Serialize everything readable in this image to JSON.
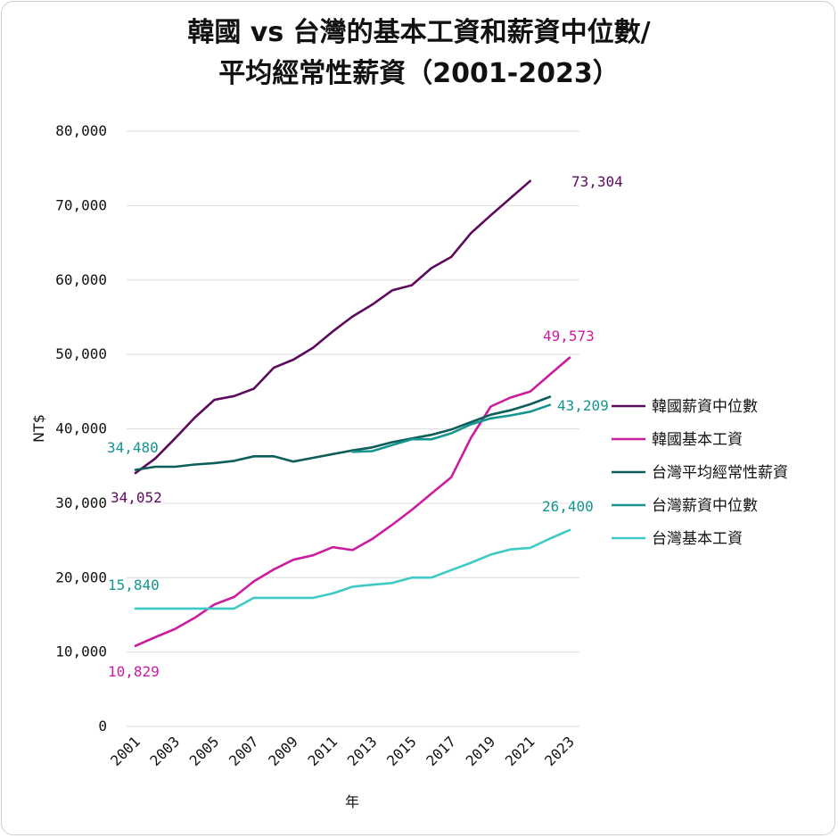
{
  "chart_data": {
    "type": "line",
    "title_lines": [
      "韓國 vs 台灣的基本工資和薪資中位數/",
      "平均經常性薪資（2001-2023）"
    ],
    "xlabel": "年",
    "ylabel": "NT$",
    "ylim": [
      0,
      80000
    ],
    "yticks": [
      0,
      10000,
      20000,
      30000,
      40000,
      50000,
      60000,
      70000,
      80000
    ],
    "ytick_labels": [
      "0",
      "10,000",
      "20,000",
      "30,000",
      "40,000",
      "50,000",
      "60,000",
      "70,000",
      "80,000"
    ],
    "x": [
      2001,
      2002,
      2003,
      2004,
      2005,
      2006,
      2007,
      2008,
      2009,
      2010,
      2011,
      2012,
      2013,
      2014,
      2015,
      2016,
      2017,
      2018,
      2019,
      2020,
      2021,
      2022,
      2023
    ],
    "xtick_labels": [
      "2001",
      "2003",
      "2005",
      "2007",
      "2009",
      "2011",
      "2013",
      "2015",
      "2017",
      "2019",
      "2021",
      "2023"
    ],
    "grid": "horizontal",
    "legend_position": "right",
    "series": [
      {
        "name": "韓國薪資中位數",
        "color": "#5c0a5e",
        "values": [
          34052,
          36000,
          38700,
          41500,
          43900,
          44400,
          45400,
          48200,
          49300,
          50900,
          53100,
          55100,
          56700,
          58600,
          59300,
          61600,
          63100,
          66300,
          68700,
          71000,
          73304,
          null,
          null
        ]
      },
      {
        "name": "韓國基本工資",
        "color": "#cc1c9e",
        "values": [
          10829,
          12000,
          13100,
          14600,
          16400,
          17400,
          19500,
          21100,
          22400,
          23000,
          24100,
          23700,
          25200,
          27100,
          29100,
          31300,
          33500,
          38800,
          43000,
          44200,
          45000,
          47300,
          49573
        ]
      },
      {
        "name": "台灣平均經常性薪資",
        "color": "#0d5e5a",
        "values": [
          34480,
          34900,
          34900,
          35200,
          35400,
          35700,
          36300,
          36300,
          35600,
          36100,
          36600,
          37100,
          37500,
          38200,
          38700,
          39200,
          39900,
          40900,
          41900,
          42500,
          43300,
          44300,
          null
        ]
      },
      {
        "name": "台灣薪資中位數",
        "color": "#14968f",
        "values": [
          null,
          null,
          null,
          null,
          null,
          null,
          null,
          null,
          null,
          null,
          null,
          36900,
          37000,
          37800,
          38600,
          38600,
          39400,
          40600,
          41400,
          41800,
          42300,
          43209,
          null
        ]
      },
      {
        "name": "台灣基本工資",
        "color": "#3ec9c6",
        "values": [
          15840,
          15840,
          15840,
          15840,
          15840,
          15840,
          17280,
          17280,
          17280,
          17280,
          17880,
          18780,
          19047,
          19273,
          20008,
          20008,
          21009,
          22000,
          23100,
          23800,
          24000,
          25250,
          26400
        ]
      }
    ],
    "data_labels": [
      {
        "text": "73,304",
        "series": "韓國薪資中位數",
        "color": "#5c0a5e"
      },
      {
        "text": "34,052",
        "series": "韓國薪資中位數",
        "color": "#5c0a5e"
      },
      {
        "text": "49,573",
        "series": "韓國基本工資",
        "color": "#cc1c9e"
      },
      {
        "text": "10,829",
        "series": "韓國基本工資",
        "color": "#cc1c9e"
      },
      {
        "text": "34,480",
        "series": "台灣平均經常性薪資",
        "color": "#14968f"
      },
      {
        "text": "43,209",
        "series": "台灣薪資中位數",
        "color": "#14968f"
      },
      {
        "text": "26,400",
        "series": "台灣基本工資",
        "color": "#14968f"
      },
      {
        "text": "15,840",
        "series": "台灣基本工資",
        "color": "#14968f"
      }
    ]
  }
}
